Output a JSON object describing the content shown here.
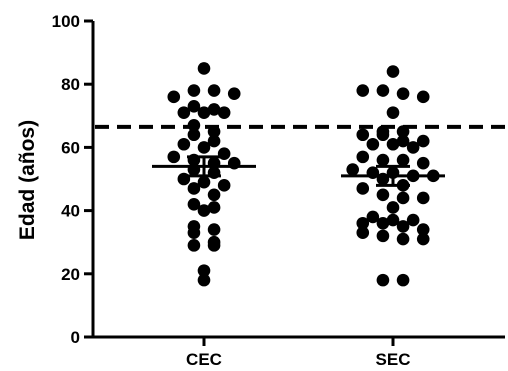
{
  "chart_data": {
    "type": "scatter",
    "categories": [
      "CEC",
      "SEC"
    ],
    "ylabel": "Edad (años)",
    "xlabel": "",
    "title": "",
    "ylim": [
      0,
      100
    ],
    "yticks": [
      0,
      20,
      40,
      60,
      80,
      100
    ],
    "reference_line": {
      "y": 66.5,
      "style": "dashed"
    },
    "series": [
      {
        "category": "CEC",
        "points": [
          85,
          76,
          78,
          78,
          77,
          73,
          72,
          71,
          71,
          71,
          67,
          65,
          64,
          62,
          61,
          60,
          58,
          57,
          56,
          55,
          55,
          53,
          52,
          50,
          49,
          48,
          47,
          45,
          42,
          41,
          40,
          35,
          34,
          33,
          30,
          29,
          29,
          21,
          18
        ],
        "mean": 54,
        "sem_low": 51,
        "sem_high": 57
      },
      {
        "category": "SEC",
        "points": [
          84,
          78,
          78,
          77,
          76,
          71,
          65,
          65,
          64,
          64,
          62,
          62,
          61,
          61,
          60,
          57,
          56,
          56,
          55,
          53,
          52,
          52,
          51,
          51,
          50,
          48,
          47,
          45,
          44,
          44,
          41,
          38,
          37,
          37,
          36,
          36,
          35,
          34,
          33,
          32,
          31,
          31,
          18,
          18
        ],
        "mean": 51,
        "sem_low": 48,
        "sem_high": 54
      }
    ]
  }
}
